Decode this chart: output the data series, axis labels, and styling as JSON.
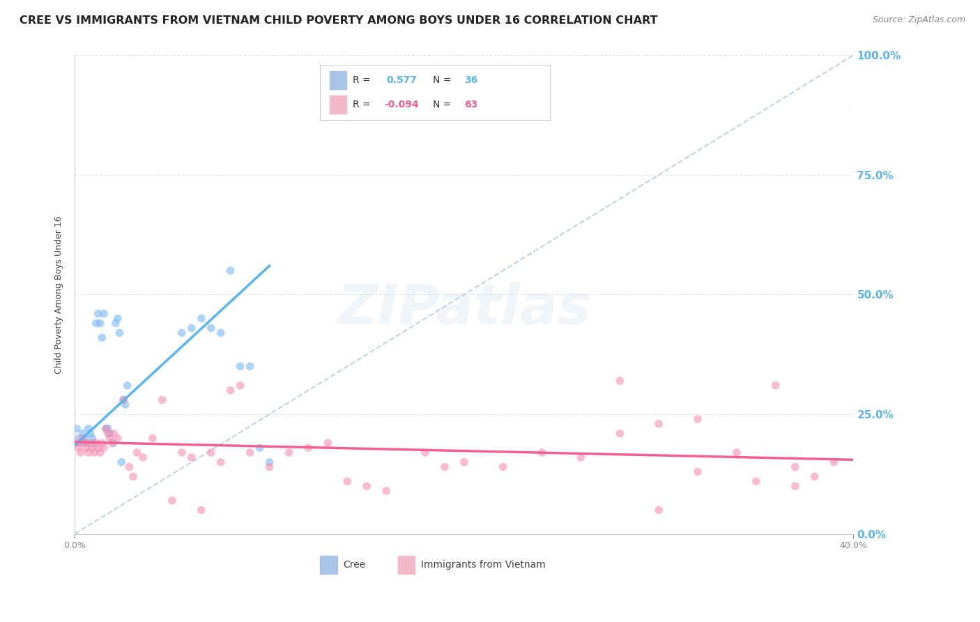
{
  "title": "CREE VS IMMIGRANTS FROM VIETNAM CHILD POVERTY AMONG BOYS UNDER 16 CORRELATION CHART",
  "source": "Source: ZipAtlas.com",
  "ylabel": "Child Poverty Among Boys Under 16",
  "right_ytick_labels": [
    "0.0%",
    "25.0%",
    "50.0%",
    "75.0%",
    "100.0%"
  ],
  "right_ytick_colors": [
    "#5ab4f0",
    "#5ab4f0",
    "#5ab4f0",
    "#5ab4f0",
    "#5ab4f0"
  ],
  "watermark": "ZIPatlas",
  "cree_R": "0.577",
  "cree_N": "36",
  "viet_R": "-0.094",
  "viet_N": "63",
  "cree_color": "#7ab8f5",
  "viet_color": "#f48fb1",
  "cree_patch_color": "#aac4e8",
  "viet_patch_color": "#f4b8c8",
  "diag_line_color": "#b8cfe0",
  "cree_line_color": "#5ab4f0",
  "viet_line_color": "#f06090",
  "background_color": "#ffffff",
  "grid_color": "#dde6ee",
  "title_fontsize": 11.5,
  "axis_label_fontsize": 9,
  "tick_fontsize": 9,
  "source_fontsize": 9,
  "xlim": [
    0.0,
    0.4
  ],
  "ylim": [
    0.0,
    1.0
  ],
  "cree_x": [
    0.001,
    0.002,
    0.003,
    0.004,
    0.005,
    0.006,
    0.007,
    0.008,
    0.009,
    0.01,
    0.011,
    0.012,
    0.013,
    0.014,
    0.015,
    0.016,
    0.017,
    0.018,
    0.02,
    0.021,
    0.022,
    0.023,
    0.024,
    0.025,
    0.026,
    0.027,
    0.055,
    0.06,
    0.065,
    0.07,
    0.075,
    0.08,
    0.085,
    0.09,
    0.095,
    0.1
  ],
  "cree_y": [
    0.22,
    0.2,
    0.19,
    0.21,
    0.2,
    0.19,
    0.22,
    0.21,
    0.2,
    0.19,
    0.44,
    0.46,
    0.44,
    0.41,
    0.46,
    0.22,
    0.22,
    0.21,
    0.19,
    0.44,
    0.45,
    0.42,
    0.15,
    0.28,
    0.27,
    0.31,
    0.42,
    0.43,
    0.45,
    0.43,
    0.42,
    0.55,
    0.35,
    0.35,
    0.18,
    0.15
  ],
  "viet_x": [
    0.001,
    0.002,
    0.003,
    0.004,
    0.005,
    0.006,
    0.007,
    0.008,
    0.009,
    0.01,
    0.011,
    0.012,
    0.013,
    0.014,
    0.015,
    0.016,
    0.017,
    0.018,
    0.019,
    0.02,
    0.022,
    0.025,
    0.028,
    0.03,
    0.032,
    0.035,
    0.04,
    0.045,
    0.05,
    0.055,
    0.06,
    0.065,
    0.07,
    0.075,
    0.08,
    0.085,
    0.09,
    0.1,
    0.11,
    0.12,
    0.13,
    0.14,
    0.15,
    0.16,
    0.18,
    0.19,
    0.2,
    0.22,
    0.24,
    0.26,
    0.28,
    0.3,
    0.32,
    0.34,
    0.36,
    0.37,
    0.38,
    0.39,
    0.28,
    0.3,
    0.32,
    0.35,
    0.37
  ],
  "viet_y": [
    0.19,
    0.18,
    0.17,
    0.2,
    0.19,
    0.18,
    0.17,
    0.19,
    0.18,
    0.17,
    0.19,
    0.18,
    0.17,
    0.19,
    0.18,
    0.22,
    0.21,
    0.2,
    0.19,
    0.21,
    0.2,
    0.28,
    0.14,
    0.12,
    0.17,
    0.16,
    0.2,
    0.28,
    0.07,
    0.17,
    0.16,
    0.05,
    0.17,
    0.15,
    0.3,
    0.31,
    0.17,
    0.14,
    0.17,
    0.18,
    0.19,
    0.11,
    0.1,
    0.09,
    0.17,
    0.14,
    0.15,
    0.14,
    0.17,
    0.16,
    0.21,
    0.23,
    0.24,
    0.17,
    0.31,
    0.14,
    0.12,
    0.15,
    0.32,
    0.05,
    0.13,
    0.11,
    0.1
  ]
}
